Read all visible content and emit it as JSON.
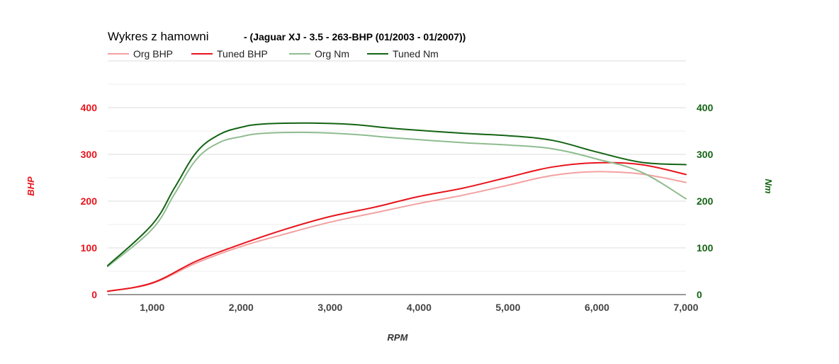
{
  "chart_data": {
    "type": "line",
    "title": "Wykres z hamowni",
    "subtitle": "- (Jaguar XJ - 3.5 - 263-BHP (01/2003 - 01/2007))",
    "xlabel": "RPM",
    "ylabel_left": "BHP",
    "ylabel_right": "Nm",
    "xlim": [
      500,
      7000
    ],
    "ylim_left": [
      0,
      400
    ],
    "ylim_right": [
      0,
      400
    ],
    "x_ticks": [
      1000,
      2000,
      3000,
      4000,
      5000,
      6000,
      7000
    ],
    "x_tick_labels": [
      "1,000",
      "2,000",
      "3,000",
      "4,000",
      "5,000",
      "6,000",
      "7,000"
    ],
    "y_ticks": [
      0,
      100,
      200,
      300,
      400
    ],
    "y_tick_labels": [
      "0",
      "100",
      "200",
      "300",
      "400"
    ],
    "grid": true,
    "legend_position": "top-left",
    "colors": {
      "org_bhp": "#f4a0a0",
      "tuned_bhp": "#e8141c",
      "org_nm": "#8fbc8f",
      "tuned_nm": "#146414",
      "left_axis": "#e8141c",
      "right_axis": "#146414",
      "grid": "#dddddd"
    },
    "series": [
      {
        "name": "Org BHP",
        "axis": "left",
        "key": "org_bhp",
        "x": [
          500,
          1000,
          1500,
          2000,
          2500,
          3000,
          3500,
          4000,
          4500,
          5000,
          5500,
          6000,
          6500,
          7000
        ],
        "y": [
          7,
          24,
          68,
          103,
          130,
          155,
          175,
          195,
          213,
          234,
          255,
          263,
          258,
          240
        ]
      },
      {
        "name": "Tuned BHP",
        "axis": "left",
        "key": "tuned_bhp",
        "x": [
          500,
          1000,
          1500,
          2000,
          2500,
          3000,
          3500,
          4000,
          4500,
          5000,
          5500,
          6000,
          6500,
          7000
        ],
        "y": [
          7,
          25,
          72,
          108,
          140,
          167,
          187,
          210,
          228,
          251,
          273,
          282,
          278,
          257
        ]
      },
      {
        "name": "Org Nm",
        "axis": "right",
        "key": "org_nm",
        "x": [
          500,
          1000,
          1250,
          1500,
          1750,
          2000,
          2250,
          2750,
          3250,
          3750,
          4500,
          5000,
          5500,
          6000,
          6500,
          7000
        ],
        "y": [
          60,
          140,
          215,
          290,
          325,
          338,
          345,
          347,
          343,
          335,
          325,
          320,
          312,
          290,
          262,
          205
        ]
      },
      {
        "name": "Tuned Nm",
        "axis": "right",
        "key": "tuned_nm",
        "x": [
          500,
          1000,
          1250,
          1500,
          1750,
          2000,
          2250,
          2750,
          3250,
          3750,
          4500,
          5000,
          5500,
          6000,
          6500,
          7000
        ],
        "y": [
          62,
          150,
          228,
          305,
          342,
          358,
          365,
          367,
          364,
          355,
          345,
          340,
          330,
          305,
          283,
          278
        ]
      }
    ]
  }
}
